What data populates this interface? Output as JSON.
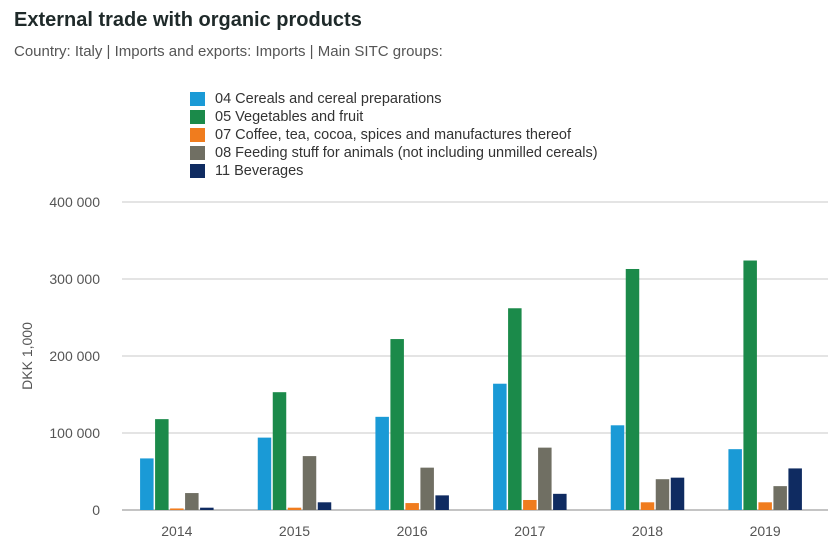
{
  "chart_data": {
    "type": "bar",
    "title": "External trade with organic products",
    "subtitle": "Country: Italy | Imports and exports: Imports | Main SITC groups:",
    "ylabel": "DKK 1,000",
    "xlabel": "",
    "categories": [
      "2014",
      "2015",
      "2016",
      "2017",
      "2018",
      "2019"
    ],
    "ylim": [
      0,
      400000
    ],
    "yticks": [
      0,
      100000,
      200000,
      300000,
      400000
    ],
    "ytick_labels": [
      "0",
      "100 000",
      "200 000",
      "300 000",
      "400 000"
    ],
    "grid": "horizontal",
    "legend_position": "top",
    "series": [
      {
        "name": "04 Cereals and cereal preparations",
        "color": "#1a9ad6",
        "values": [
          67000,
          94000,
          121000,
          164000,
          110000,
          79000
        ]
      },
      {
        "name": "05 Vegetables and fruit",
        "color": "#1b8a4a",
        "values": [
          118000,
          153000,
          222000,
          262000,
          313000,
          324000
        ]
      },
      {
        "name": "07 Coffee, tea, cocoa, spices and manufactures thereof",
        "color": "#f07c1e",
        "values": [
          2000,
          3000,
          9000,
          13000,
          10000,
          10000
        ]
      },
      {
        "name": "08 Feeding stuff for animals (not including unmilled cereals)",
        "color": "#706f63",
        "values": [
          22000,
          70000,
          55000,
          81000,
          40000,
          31000
        ]
      },
      {
        "name": "11 Beverages",
        "color": "#0f2b61",
        "values": [
          3000,
          10000,
          19000,
          21000,
          42000,
          54000
        ]
      }
    ]
  }
}
